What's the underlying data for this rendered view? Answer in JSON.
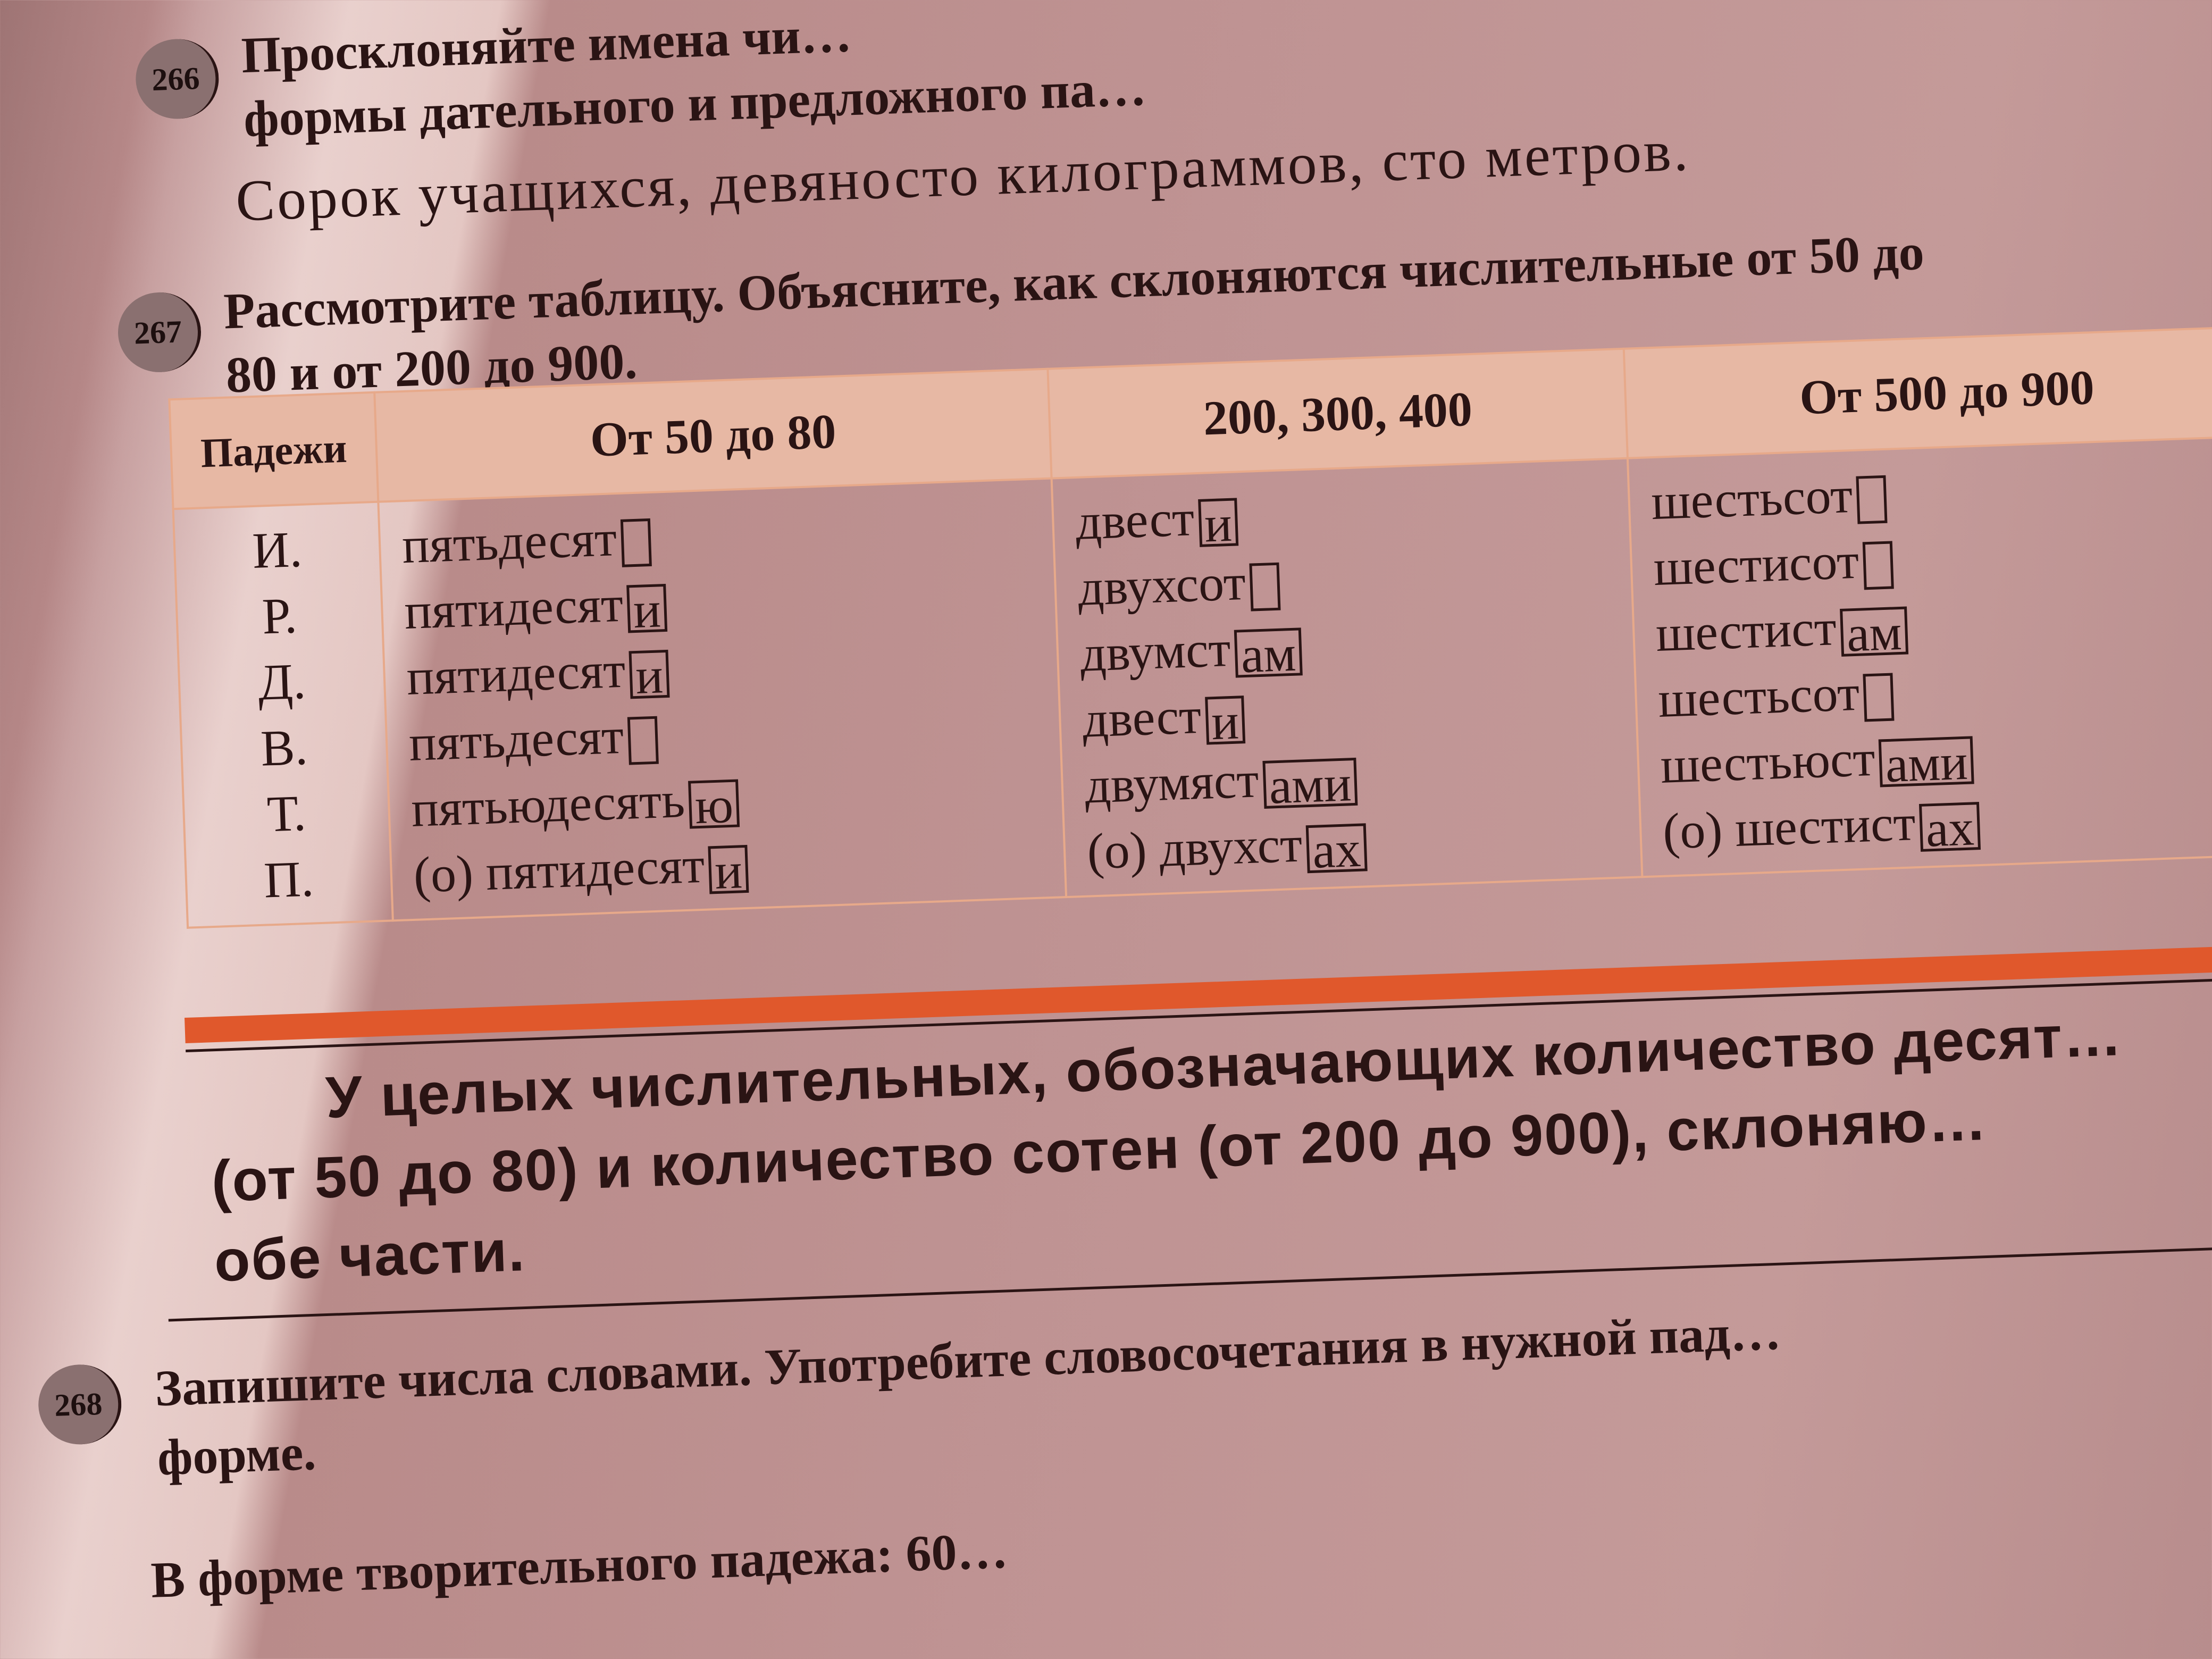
{
  "task266": {
    "number": "266",
    "line1": "Просклоняйте имена чи…",
    "line2": "формы дательного и предложного па…",
    "example": "Сорок учащихся, девяносто килограммов, сто метров."
  },
  "task267": {
    "number": "267",
    "line1": "Рассмотрите таблицу. Объясните, как склоняются числительные от 50 до",
    "line2": "80 и от 200 до 900."
  },
  "table": {
    "headers": [
      "Падежи",
      "От 50 до 80",
      "200, 300, 400",
      "От 500 до 900"
    ],
    "cases": [
      "И.",
      "Р.",
      "Д.",
      "В.",
      "Т.",
      "П."
    ],
    "col1": [
      {
        "stem": "пятьдесят",
        "ending": ""
      },
      {
        "stem": "пятидесят",
        "ending": "и"
      },
      {
        "stem": "пятидесят",
        "ending": "и"
      },
      {
        "stem": "пятьдесят",
        "ending": ""
      },
      {
        "stem": "пятьюдесять",
        "ending": "ю"
      },
      {
        "stem": "(о) пятидесят",
        "ending": "и"
      }
    ],
    "col2": [
      {
        "stem": "двест",
        "ending": "и"
      },
      {
        "stem": "двухсот",
        "ending": ""
      },
      {
        "stem": "двумст",
        "ending": "ам"
      },
      {
        "stem": "двест",
        "ending": "и"
      },
      {
        "stem": "двумяст",
        "ending": "ами"
      },
      {
        "stem": "(о) двухст",
        "ending": "ах"
      }
    ],
    "col3": [
      {
        "stem": "шестьсот",
        "ending": ""
      },
      {
        "stem": "шестисот",
        "ending": ""
      },
      {
        "stem": "шестист",
        "ending": "ам"
      },
      {
        "stem": "шестьсот",
        "ending": ""
      },
      {
        "stem": "шестьюст",
        "ending": "ами"
      },
      {
        "stem": "(о) шестист",
        "ending": "ах"
      }
    ]
  },
  "rule": {
    "line1": "У целых числительных, обозначающих количество десят…",
    "line2": "(от 50 до 80) и количество сотен (от 200 до 900), склоняю…",
    "line3": "обе части."
  },
  "task268": {
    "number": "268",
    "line1": "Запишите числа словами. Употребите словосочетания в нужной пад…",
    "line2": "форме.",
    "line3": "В форме творительного падежа: 60…"
  },
  "colors": {
    "accent_bar": "#e0582c",
    "table_header": "#e7b8a4",
    "table_border": "#e7a98a"
  }
}
